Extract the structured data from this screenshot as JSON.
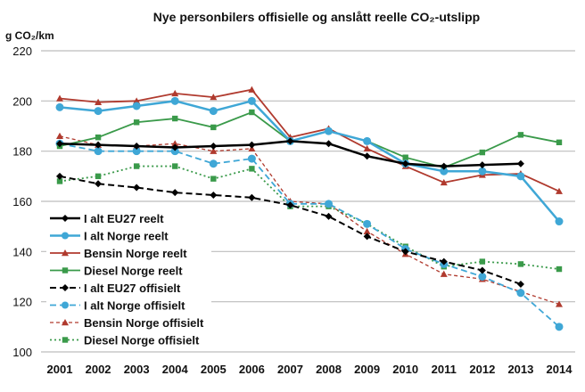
{
  "chart_data": {
    "type": "line",
    "title": "Nye personbilers offisielle og anslått reelle CO₂-utslipp",
    "ylabel": "g CO₂/km",
    "xlabel": "",
    "ylim": [
      100,
      220
    ],
    "yticks": [
      100,
      120,
      140,
      160,
      180,
      200,
      220
    ],
    "grid": "horizontal",
    "legend_position": "left-middle",
    "categories": [
      "2001",
      "2002",
      "2003",
      "2004",
      "2005",
      "2006",
      "2007",
      "2008",
      "2009",
      "2010",
      "2011",
      "2012",
      "2013",
      "2014"
    ],
    "series": [
      {
        "name": "I alt EU27 reelt",
        "color": "#000000",
        "dash": "solid",
        "marker": "diamond",
        "width": 2.5,
        "values": [
          183,
          182.5,
          182,
          181.5,
          182,
          182.5,
          184,
          183,
          178,
          175,
          174,
          174.5,
          175,
          null
        ]
      },
      {
        "name": "I alt Norge reelt",
        "color": "#3fa7d6",
        "dash": "solid",
        "marker": "circle",
        "width": 2.5,
        "values": [
          197.5,
          196,
          198,
          200,
          196,
          200,
          184,
          188,
          184,
          175,
          172,
          172,
          170,
          152
        ]
      },
      {
        "name": "Bensin Norge reelt",
        "color": "#b03a2e",
        "dash": "solid",
        "marker": "triangle",
        "width": 1.8,
        "values": [
          201,
          199.5,
          200,
          203,
          201.5,
          204.5,
          185.5,
          189,
          181,
          174,
          167.5,
          170.5,
          171,
          164
        ]
      },
      {
        "name": "Diesel Norge reelt",
        "color": "#3a9a4a",
        "dash": "solid",
        "marker": "square",
        "width": 1.8,
        "values": [
          182,
          185.5,
          191.5,
          193,
          189.5,
          195.5,
          184,
          188,
          184,
          177.5,
          173.5,
          179.5,
          186.5,
          183.5
        ]
      },
      {
        "name": "I alt EU27 offisielt",
        "color": "#000000",
        "dash": "dashed",
        "marker": "diamond",
        "width": 2,
        "values": [
          170,
          167,
          165.5,
          163.5,
          162.5,
          161.5,
          158.5,
          154,
          146,
          140,
          136,
          132.5,
          127,
          null
        ]
      },
      {
        "name": "I alt Norge offisielt",
        "color": "#3fa7d6",
        "dash": "dashed",
        "marker": "circle",
        "width": 1.8,
        "values": [
          183,
          180,
          180,
          180,
          175,
          177,
          159,
          159,
          151,
          141,
          135,
          130,
          123.5,
          110
        ]
      },
      {
        "name": "Bensin Norge offisielt",
        "color": "#b03a2e",
        "dash": "fine-dashed",
        "marker": "triangle",
        "width": 1.3,
        "values": [
          186,
          182.5,
          182,
          183,
          180,
          181,
          160,
          159,
          148,
          139,
          131,
          129,
          124,
          119
        ]
      },
      {
        "name": "Diesel Norge offisielt",
        "color": "#3a9a4a",
        "dash": "dotted",
        "marker": "square",
        "width": 1.8,
        "values": [
          168,
          170,
          174,
          174,
          169,
          173,
          158,
          158,
          151,
          142,
          134,
          136,
          135,
          133
        ]
      }
    ]
  }
}
